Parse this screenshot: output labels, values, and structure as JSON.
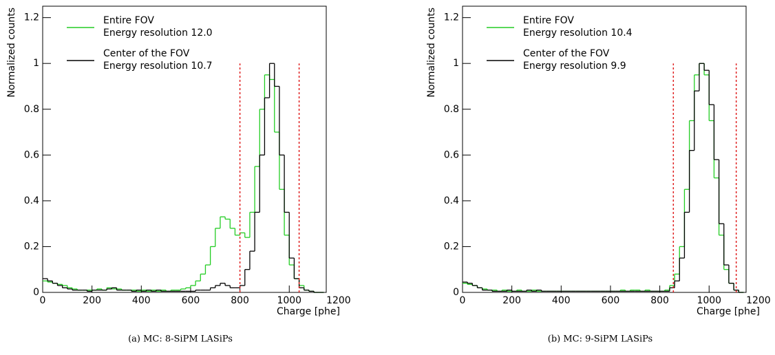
{
  "chart_data": [
    {
      "type": "histogram",
      "caption": "(a) MC: 8-SiPM LASiPs",
      "xlabel": "Charge [phe]",
      "ylabel": "Normalized counts",
      "xlim": [
        0,
        1150
      ],
      "ylim": [
        0,
        1.25
      ],
      "xticks": [
        0,
        200,
        400,
        600,
        800,
        1000,
        1200
      ],
      "yticks": [
        0,
        0.2,
        0.4,
        0.6,
        0.8,
        1,
        1.2
      ],
      "bins": [
        0,
        20,
        40,
        60,
        80,
        100,
        120,
        140,
        160,
        180,
        200,
        220,
        240,
        260,
        280,
        300,
        320,
        340,
        360,
        380,
        400,
        420,
        440,
        460,
        480,
        500,
        520,
        540,
        560,
        580,
        600,
        620,
        640,
        660,
        680,
        700,
        720,
        740,
        760,
        780,
        800,
        820,
        840,
        860,
        880,
        900,
        920,
        940,
        960,
        980,
        1000,
        1020,
        1040,
        1060,
        1080,
        1100,
        1120,
        1140
      ],
      "series": [
        {
          "name": "Entire FOV",
          "note": "Energy resolution 12.0",
          "color": "#22cc22",
          "values": [
            0.05,
            0.045,
            0.04,
            0.035,
            0.03,
            0.02,
            0.015,
            0.01,
            0.01,
            0.01,
            0.01,
            0.015,
            0.01,
            0.02,
            0.015,
            0.015,
            0.01,
            0.01,
            0.01,
            0.005,
            0.01,
            0.005,
            0.01,
            0.005,
            0.01,
            0.005,
            0.01,
            0.01,
            0.015,
            0.02,
            0.03,
            0.05,
            0.08,
            0.12,
            0.2,
            0.28,
            0.33,
            0.32,
            0.28,
            0.25,
            0.26,
            0.24,
            0.35,
            0.55,
            0.8,
            0.95,
            0.93,
            0.7,
            0.45,
            0.25,
            0.12,
            0.06,
            0.03,
            0.01,
            0.005,
            0,
            0
          ]
        },
        {
          "name": "Center of the FOV",
          "note": "Energy resolution 10.7",
          "color": "#000000",
          "values": [
            0.06,
            0.05,
            0.04,
            0.03,
            0.02,
            0.015,
            0.01,
            0.01,
            0.01,
            0.005,
            0.01,
            0.01,
            0.01,
            0.015,
            0.02,
            0.01,
            0.01,
            0.01,
            0.005,
            0.01,
            0.005,
            0.01,
            0.005,
            0.01,
            0.005,
            0.005,
            0.005,
            0.005,
            0.005,
            0.005,
            0.005,
            0.01,
            0.01,
            0.01,
            0.02,
            0.03,
            0.04,
            0.03,
            0.02,
            0.02,
            0.03,
            0.1,
            0.18,
            0.35,
            0.6,
            0.85,
            1.0,
            0.9,
            0.6,
            0.35,
            0.15,
            0.06,
            0.02,
            0.01,
            0.005,
            0,
            0
          ]
        }
      ],
      "vlines": [
        {
          "value": 800,
          "color": "#e02020"
        },
        {
          "value": 1040,
          "color": "#e02020"
        }
      ]
    },
    {
      "type": "histogram",
      "caption": "(b) MC: 9-SiPM LASiPs",
      "xlabel": "Charge [phe]",
      "ylabel": "Normalized counts",
      "xlim": [
        0,
        1150
      ],
      "ylim": [
        0,
        1.25
      ],
      "xticks": [
        0,
        200,
        400,
        600,
        800,
        1000,
        1200
      ],
      "yticks": [
        0,
        0.2,
        0.4,
        0.6,
        0.8,
        1,
        1.2
      ],
      "bins": [
        0,
        20,
        40,
        60,
        80,
        100,
        120,
        140,
        160,
        180,
        200,
        220,
        240,
        260,
        280,
        300,
        320,
        340,
        360,
        380,
        400,
        420,
        440,
        460,
        480,
        500,
        520,
        540,
        560,
        580,
        600,
        620,
        640,
        660,
        680,
        700,
        720,
        740,
        760,
        780,
        800,
        820,
        840,
        860,
        880,
        900,
        920,
        940,
        960,
        980,
        1000,
        1020,
        1040,
        1060,
        1080,
        1100,
        1120,
        1140
      ],
      "series": [
        {
          "name": "Entire FOV",
          "note": "Energy resolution 10.4",
          "color": "#22cc22",
          "values": [
            0.04,
            0.035,
            0.03,
            0.02,
            0.015,
            0.01,
            0.01,
            0.005,
            0.01,
            0.005,
            0.005,
            0.01,
            0.005,
            0.005,
            0.01,
            0.005,
            0.005,
            0.005,
            0.005,
            0.005,
            0.005,
            0.005,
            0.005,
            0.005,
            0.005,
            0.005,
            0.005,
            0.005,
            0.005,
            0.005,
            0.005,
            0.005,
            0.01,
            0.005,
            0.01,
            0.01,
            0.005,
            0.01,
            0.005,
            0.005,
            0.005,
            0.01,
            0.03,
            0.08,
            0.2,
            0.45,
            0.75,
            0.95,
            1.0,
            0.95,
            0.75,
            0.5,
            0.25,
            0.1,
            0.04,
            0.01,
            0
          ]
        },
        {
          "name": "Center of the FOV",
          "note": "Energy resolution 9.9",
          "color": "#000000",
          "values": [
            0.045,
            0.04,
            0.03,
            0.02,
            0.01,
            0.01,
            0.005,
            0.005,
            0.005,
            0.01,
            0.005,
            0.005,
            0.005,
            0.01,
            0.005,
            0.01,
            0.005,
            0.005,
            0.005,
            0.005,
            0.005,
            0.005,
            0.005,
            0.005,
            0.005,
            0.005,
            0.005,
            0.005,
            0.005,
            0.005,
            0.005,
            0.005,
            0.005,
            0.005,
            0.005,
            0.005,
            0.005,
            0.005,
            0.005,
            0.005,
            0.005,
            0.005,
            0.02,
            0.05,
            0.15,
            0.35,
            0.62,
            0.88,
            1.0,
            0.97,
            0.82,
            0.58,
            0.3,
            0.12,
            0.04,
            0.01,
            0
          ]
        }
      ],
      "vlines": [
        {
          "value": 855,
          "color": "#e02020"
        },
        {
          "value": 1110,
          "color": "#e02020"
        }
      ]
    }
  ]
}
